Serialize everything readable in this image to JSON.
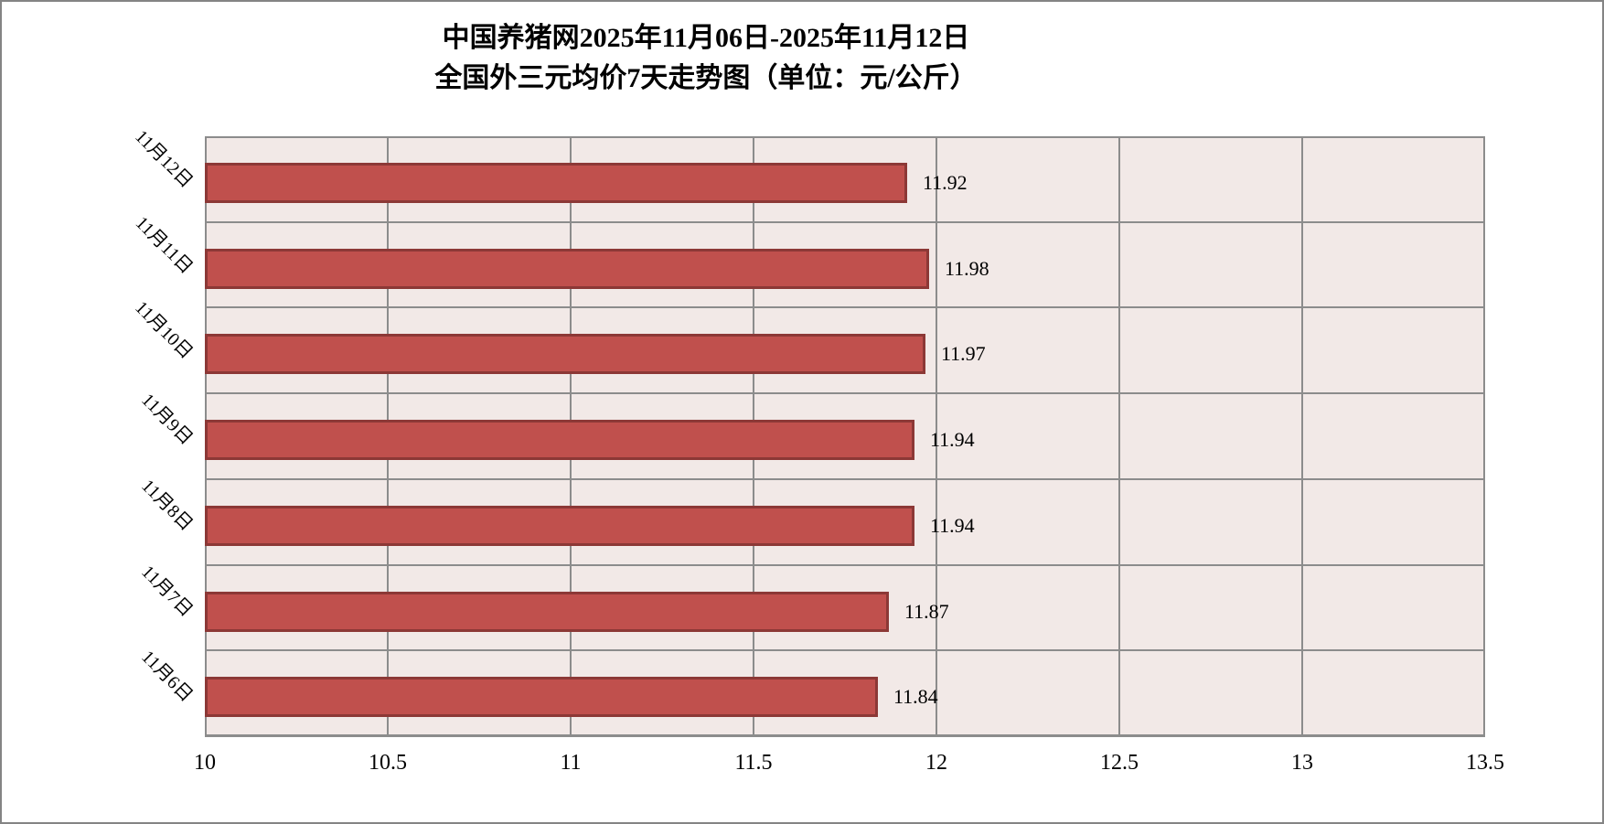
{
  "title": {
    "line1": "中国养猪网2025年11月06日-2025年11月12日",
    "line2": "全国外三元均价7天走势图（单位：元/公斤）"
  },
  "chart_data": {
    "type": "bar",
    "orientation": "horizontal",
    "title": "中国养猪网2025年11月06日-2025年11月12日 全国外三元均价7天走势图（单位：元/公斤）",
    "unit": "元/公斤",
    "categories": [
      "11月12日",
      "11月11日",
      "11月10日",
      "11月9日",
      "11月8日",
      "11月7日",
      "11月6日"
    ],
    "values": [
      11.92,
      11.98,
      11.97,
      11.94,
      11.94,
      11.87,
      11.84
    ],
    "value_labels": [
      "11.92",
      "11.98",
      "11.97",
      "11.94",
      "11.94",
      "11.87",
      "11.84"
    ],
    "xlim": [
      10,
      13.5
    ],
    "x_tick_step": 0.5,
    "x_tick_labels": [
      "10",
      "10.5",
      "11",
      "11.5",
      "12",
      "12.5",
      "13",
      "13.5"
    ],
    "grid": true,
    "legend": "none",
    "colors": {
      "bar_fill": "#c0504d",
      "bar_border": "#8c3836",
      "plot_bg": "#f2e9e7",
      "grid": "#8c8c8c",
      "frame_border": "#848484",
      "text": "#000000"
    }
  }
}
